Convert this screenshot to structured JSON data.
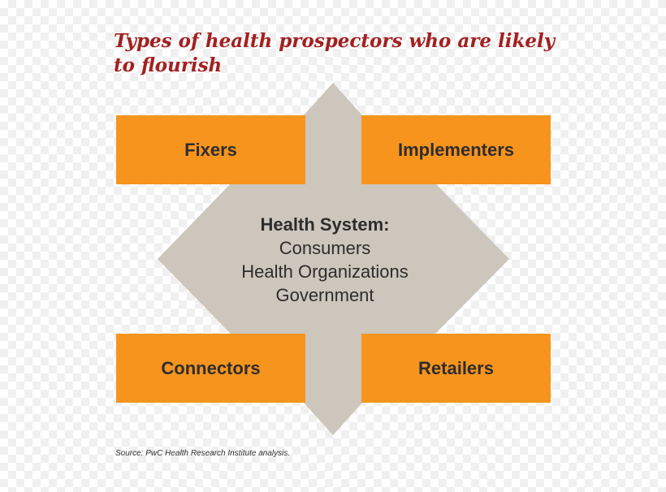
{
  "title": "Types of health prospectors who are likely to flourish",
  "boxes": {
    "fixers": "Fixers",
    "implementers": "Implementers",
    "connectors": "Connectors",
    "retailers": "Retailers"
  },
  "center": {
    "heading": "Health System:",
    "lines": [
      "Consumers",
      "Health Organizations",
      "Government"
    ]
  },
  "source": "Source: PwC Health Research Institute analysis.",
  "colors": {
    "title": "#a32020",
    "box": "#f7941d",
    "shape": "#ccc6bc",
    "text": "#2d2d2d"
  }
}
